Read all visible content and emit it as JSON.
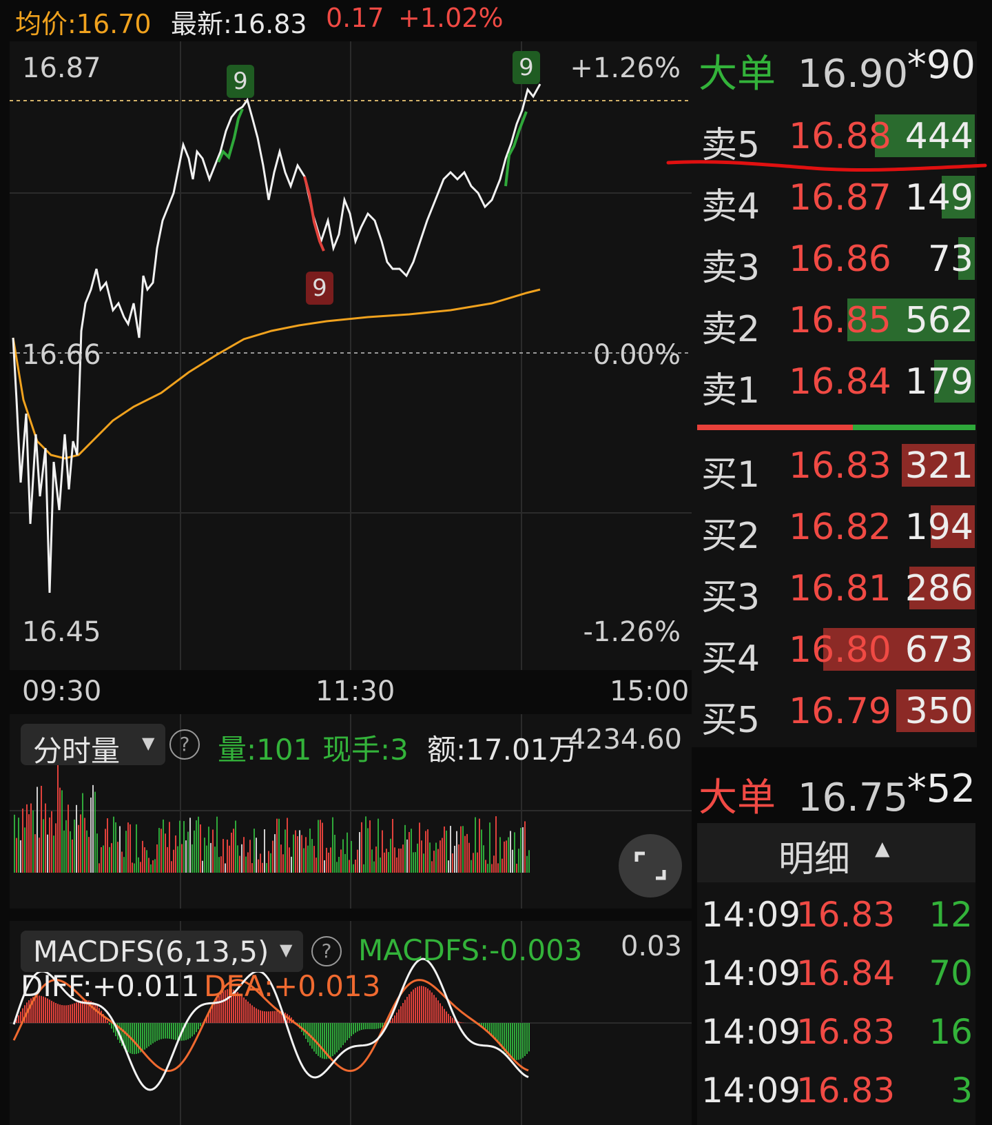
{
  "header": {
    "avg_label": "均价:16.70",
    "latest_label": "最新:16.83",
    "change": "0.17",
    "change_pct": "+1.02%"
  },
  "intraday": {
    "high_price": "16.87",
    "low_price": "16.45",
    "prev_close": "16.66",
    "high_pct": "+1.26%",
    "zero_pct": "0.00%",
    "low_pct": "-1.26%",
    "times": [
      "09:30",
      "11:30",
      "15:00"
    ],
    "markers": [
      {
        "label": "9",
        "color": "green"
      },
      {
        "label": "9",
        "color": "red"
      },
      {
        "label": "9",
        "color": "green"
      }
    ]
  },
  "volume_panel": {
    "selector": "分时量",
    "help": "?",
    "vol": "量:101",
    "current_hand": "现手:3",
    "amount": "额:17.01万",
    "max_value": "4234.60"
  },
  "macd_panel": {
    "selector": "MACDFS(6,13,5)",
    "help": "?",
    "macdfs": "MACDFS:-0.003",
    "max_value": "0.03",
    "diff": "DIFF:+0.011",
    "dea": "DEA:+0.013"
  },
  "order_book": {
    "big_top": {
      "label": "大单",
      "price": "16.90",
      "qty": "*90"
    },
    "asks": [
      {
        "label": "卖5",
        "price": "16.88",
        "qty": "444",
        "level": 0.66
      },
      {
        "label": "卖4",
        "price": "16.87",
        "qty": "149",
        "level": 0.22
      },
      {
        "label": "卖3",
        "price": "16.86",
        "qty": "73",
        "level": 0.11
      },
      {
        "label": "卖2",
        "price": "16.85",
        "qty": "562",
        "level": 0.84
      },
      {
        "label": "卖1",
        "price": "16.84",
        "qty": "179",
        "level": 0.27
      }
    ],
    "bids": [
      {
        "label": "买1",
        "price": "16.83",
        "qty": "321",
        "level": 0.48
      },
      {
        "label": "买2",
        "price": "16.82",
        "qty": "194",
        "level": 0.29
      },
      {
        "label": "买3",
        "price": "16.81",
        "qty": "286",
        "level": 0.43
      },
      {
        "label": "买4",
        "price": "16.80",
        "qty": "673",
        "level": 1.0
      },
      {
        "label": "买5",
        "price": "16.79",
        "qty": "350",
        "level": 0.52
      }
    ],
    "big_bottom": {
      "label": "大单",
      "price": "16.75",
      "qty": "*52"
    }
  },
  "detail": {
    "title": "明细",
    "rows": [
      {
        "time": "14:09",
        "price": "16.83",
        "vol": "12"
      },
      {
        "time": "14:09",
        "price": "16.84",
        "vol": "70"
      },
      {
        "time": "14:09",
        "price": "16.83",
        "vol": "16"
      },
      {
        "time": "14:09",
        "price": "16.83",
        "vol": "3"
      }
    ]
  },
  "colors": {
    "up": "#f04a44",
    "down": "#33b33a",
    "avg_line": "#f0a21e",
    "price_line": "#f2f2f2"
  }
}
